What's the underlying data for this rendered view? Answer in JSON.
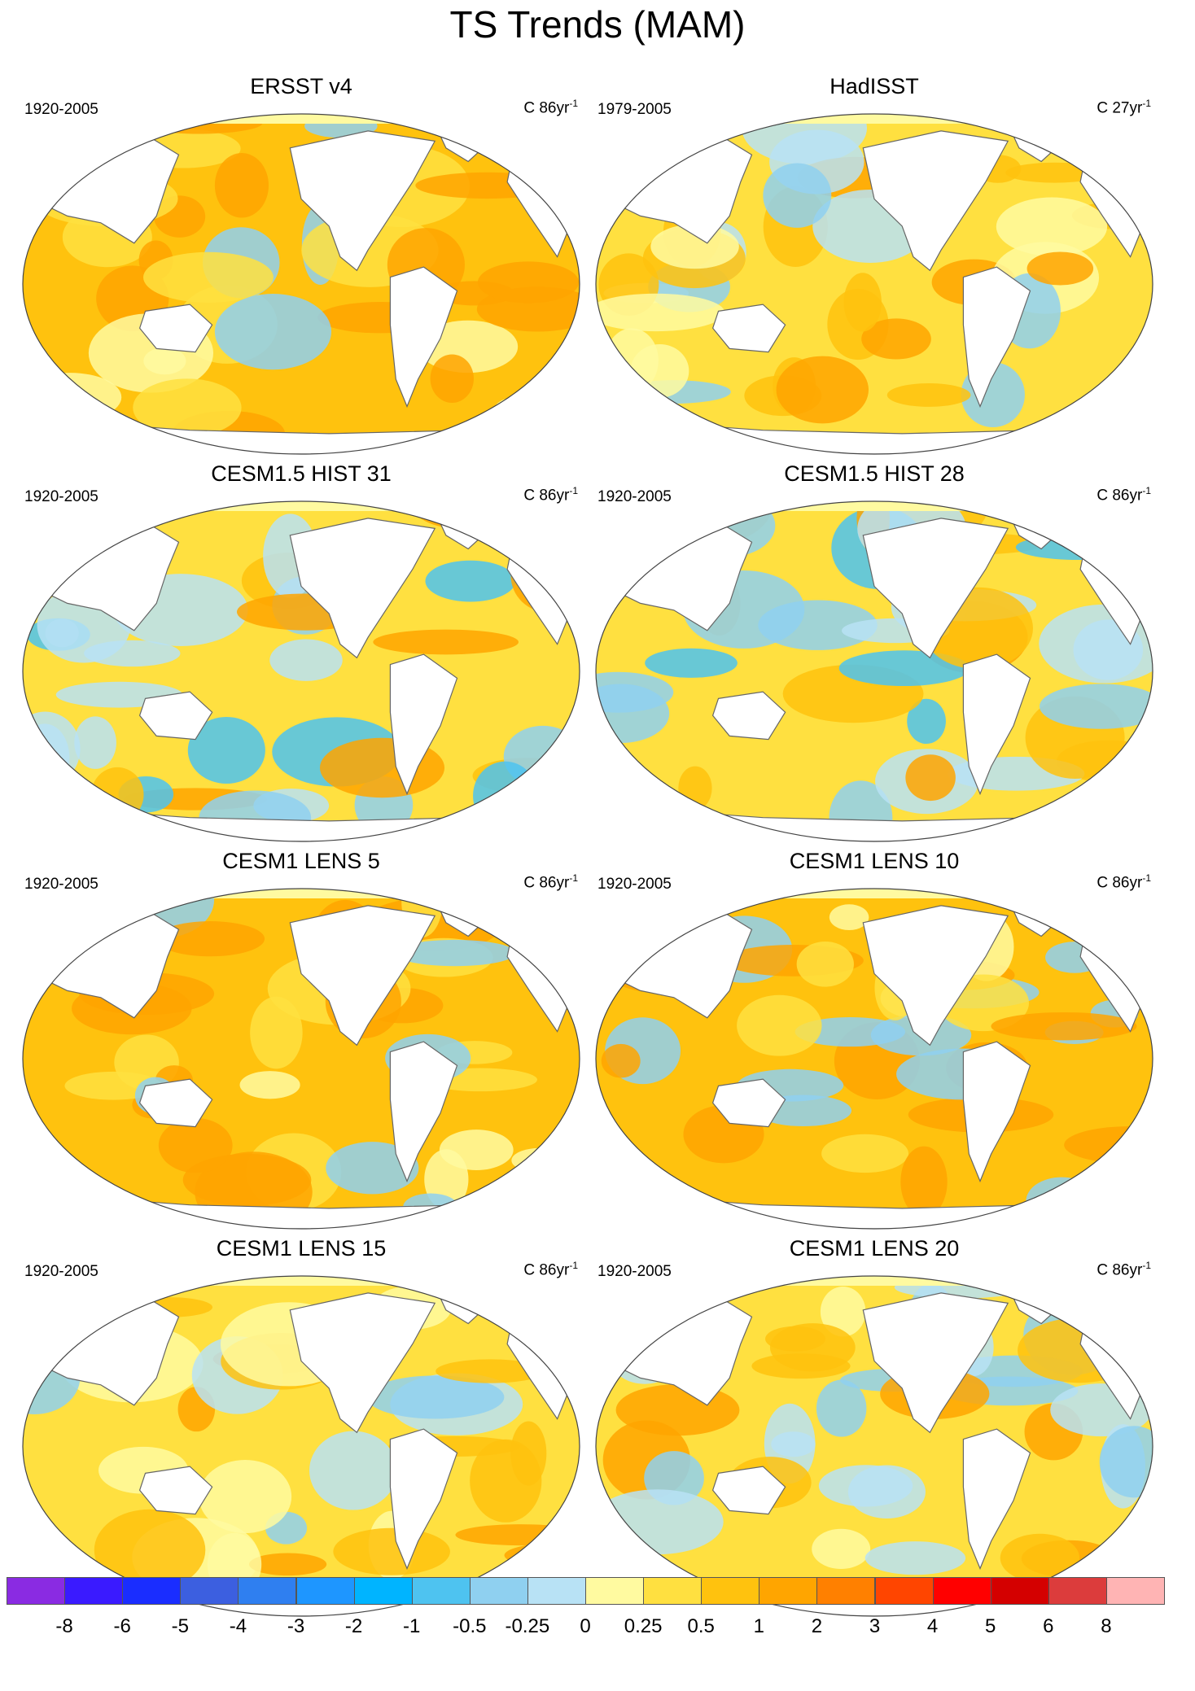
{
  "title": "TS Trends (MAM)",
  "panels": [
    {
      "title": "ERSST v4",
      "period": "1920-2005",
      "units_prefix": "C 86yr",
      "units_sup": "-1",
      "dominant": "warm"
    },
    {
      "title": "HadISST",
      "period": "1979-2005",
      "units_prefix": "C 27yr",
      "units_sup": "-1",
      "dominant": "mixed"
    },
    {
      "title": "CESM1.5 HIST 31",
      "period": "1920-2005",
      "units_prefix": "C 86yr",
      "units_sup": "-1",
      "dominant": "cool-pacific"
    },
    {
      "title": "CESM1.5 HIST 28",
      "period": "1920-2005",
      "units_prefix": "C 86yr",
      "units_sup": "-1",
      "dominant": "cool-north-pacific"
    },
    {
      "title": "CESM1 LENS 5",
      "period": "1920-2005",
      "units_prefix": "C 86yr",
      "units_sup": "-1",
      "dominant": "warm"
    },
    {
      "title": "CESM1 LENS 10",
      "period": "1920-2005",
      "units_prefix": "C 86yr",
      "units_sup": "-1",
      "dominant": "warm"
    },
    {
      "title": "CESM1 LENS 15",
      "period": "1920-2005",
      "units_prefix": "C 86yr",
      "units_sup": "-1",
      "dominant": "mixed"
    },
    {
      "title": "CESM1 LENS 20",
      "period": "1920-2005",
      "units_prefix": "C 86yr",
      "units_sup": "-1",
      "dominant": "mixed"
    }
  ],
  "colorbar": {
    "labels": [
      "-8",
      "-6",
      "-5",
      "-4",
      "-3",
      "-2",
      "-1",
      "-0.5",
      "-0.25",
      "0",
      "0.25",
      "0.5",
      "1",
      "2",
      "3",
      "4",
      "5",
      "6",
      "8"
    ],
    "colors": [
      "#8a2be2",
      "#3a1aff",
      "#1a2dff",
      "#3c5fe0",
      "#2f7ff0",
      "#1e96ff",
      "#00b4ff",
      "#4ec3f0",
      "#8fd0f0",
      "#b8e2f5",
      "#fffaa0",
      "#ffe040",
      "#ffc20e",
      "#ffa500",
      "#ff8000",
      "#ff4500",
      "#ff0000",
      "#d40000",
      "#dc3c3c",
      "#ffb4b4"
    ]
  }
}
